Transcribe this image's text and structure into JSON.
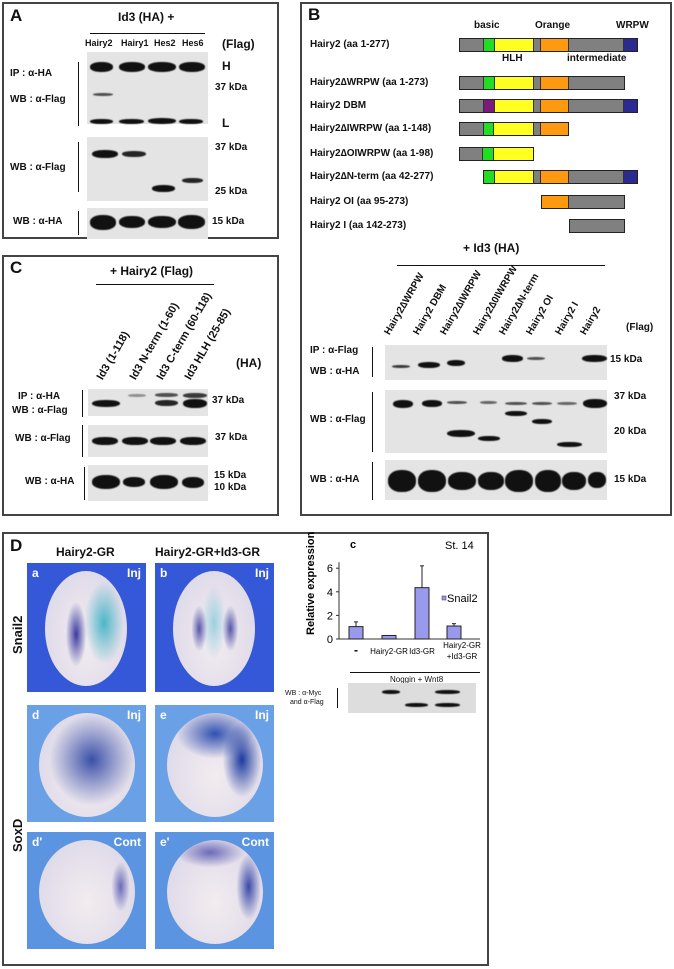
{
  "panel_a": {
    "label": "A",
    "title": "Id3 (HA) +",
    "lanes": [
      "Hairy2",
      "Hairy1",
      "Hes2",
      "Hes6"
    ],
    "tag": "(Flag)",
    "rows": [
      {
        "labels": [
          "IP : α-HA",
          "WB : α-Flag"
        ],
        "markers": [
          "H",
          "37 kDa",
          "L"
        ]
      },
      {
        "labels": [
          "WB : α-Flag"
        ],
        "markers": [
          "37 kDa",
          "25 kDa"
        ]
      },
      {
        "labels": [
          "WB : α-HA"
        ],
        "markers": [
          "15 kDa"
        ]
      }
    ]
  },
  "panel_b": {
    "label": "B",
    "domain_labels": {
      "basic": "basic",
      "orange": "Orange",
      "wrpw": "WRPW",
      "hlh": "HLH",
      "intermediate": "intermediate"
    },
    "domain_colors": {
      "gray": "#808080",
      "basic": "#22dd22",
      "basic_mutant": "#7a1a7a",
      "HLH": "#ffff22",
      "Orange": "#ff9a10",
      "WRPW": "#2a2a90"
    },
    "constructs": [
      {
        "name": "Hairy2 (aa 1-277)",
        "domains": [
          "N",
          "basic",
          "HLH",
          "linker",
          "Orange",
          "intermediate",
          "WRPW"
        ]
      },
      {
        "name": "Hairy2∆WRPW (aa 1-273)",
        "domains": [
          "N",
          "basic",
          "HLH",
          "linker",
          "Orange",
          "intermediate"
        ]
      },
      {
        "name": "Hairy2 DBM",
        "domains": [
          "N",
          "basic_mutant",
          "HLH",
          "linker",
          "Orange",
          "intermediate",
          "WRPW"
        ]
      },
      {
        "name": "Hairy2∆IWRPW (aa 1-148)",
        "domains": [
          "N",
          "basic",
          "HLH",
          "linker",
          "Orange"
        ]
      },
      {
        "name": "Hairy2∆OIWRPW (aa 1-98)",
        "domains": [
          "N",
          "basic",
          "HLH"
        ]
      },
      {
        "name": "Hairy2∆N-term (aa 42-277)",
        "domains": [
          "basic",
          "HLH",
          "linker",
          "Orange",
          "intermediate",
          "WRPW"
        ]
      },
      {
        "name": "Hairy2 OI (aa 95-273)",
        "domains": [
          "Orange",
          "intermediate"
        ]
      },
      {
        "name": "Hairy2 I (aa 142-273)",
        "domains": [
          "intermediate"
        ]
      }
    ],
    "title": "+ Id3 (HA)",
    "lanes": [
      "Hairy2∆WRPW",
      "Hairy2 DBM",
      "Hairy2∆IWRPW",
      "Hairy2∆0IWRPW",
      "Hairy2∆N-term",
      "Hairy2 OI",
      "Hairy2 I",
      "Hairy2"
    ],
    "tag": "(Flag)",
    "rows": [
      {
        "labels": [
          "IP :  α-Flag",
          "WB : α-HA"
        ],
        "markers": [
          "15 kDa"
        ]
      },
      {
        "labels": [
          "WB : α-Flag"
        ],
        "markers": [
          "37 kDa",
          "20 kDa"
        ]
      },
      {
        "labels": [
          "WB : α-HA"
        ],
        "markers": [
          "15 kDa"
        ]
      }
    ]
  },
  "panel_c": {
    "label": "C",
    "title": "+ Hairy2 (Flag)",
    "lanes": [
      "Id3 (1-118)",
      "Id3 N-term (1-60)",
      "Id3 C-term (60-118)",
      "Id3 HLH (25-85)"
    ],
    "tag": "(HA)",
    "rows": [
      {
        "labels": [
          "IP :  α-HA",
          "WB : α-Flag"
        ],
        "markers": [
          "37 kDa"
        ]
      },
      {
        "labels": [
          "WB : α-Flag"
        ],
        "markers": [
          "37 kDa"
        ]
      },
      {
        "labels": [
          "WB : α-HA"
        ],
        "markers": [
          "15 kDa",
          "10 kDa"
        ]
      }
    ]
  },
  "panel_d": {
    "label": "D",
    "columns": [
      "Hairy2-GR",
      "Hairy2-GR+Id3-GR"
    ],
    "rows": [
      "Snail2",
      "SoxD"
    ],
    "images": [
      {
        "letter": "a",
        "tag": "Inj"
      },
      {
        "letter": "b",
        "tag": "Inj"
      },
      {
        "letter": "d",
        "tag": "Inj"
      },
      {
        "letter": "e",
        "tag": "Inj"
      },
      {
        "letter": "d'",
        "tag": "Cont"
      },
      {
        "letter": "e'",
        "tag": "Cont"
      }
    ],
    "blot": {
      "condition": "Noggin + Wnt8",
      "labels": [
        "WB : α-Myc",
        "and α-Flag"
      ]
    }
  },
  "chart_data": {
    "type": "bar",
    "panel_label": "c",
    "annotation": "St. 14",
    "categories": [
      "-",
      "Hairy2-GR",
      "Id3-GR",
      "Hairy2-GR\n+Id3-GR"
    ],
    "series": [
      {
        "name": "Snail2",
        "values": [
          1.05,
          0.3,
          4.35,
          1.1
        ],
        "error_upper": [
          1.45,
          null,
          6.2,
          1.3
        ]
      }
    ],
    "xlabel": "",
    "ylabel": "Relative expression",
    "ylim": [
      0,
      6.5
    ],
    "yticks": [
      0,
      2,
      4,
      6
    ],
    "bar_color": "#9999ee",
    "legend": "right",
    "grid": false
  }
}
